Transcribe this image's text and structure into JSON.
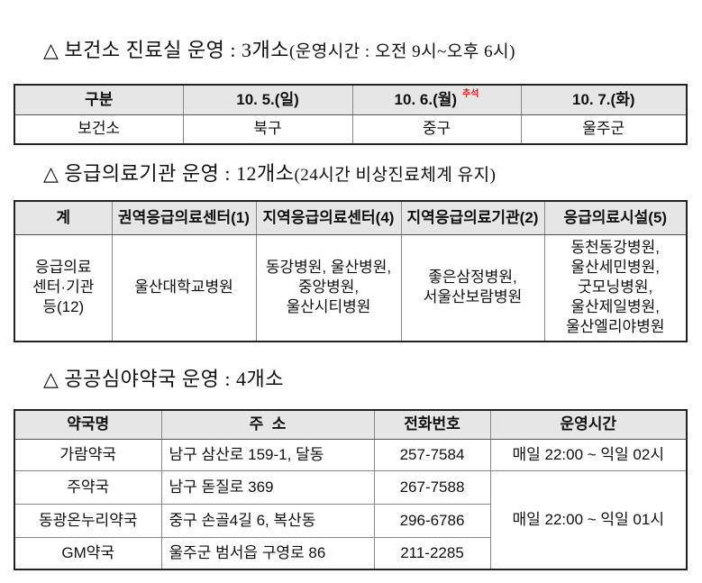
{
  "section1": {
    "heading": "△ 보건소 진료실 운영 : 3개소",
    "heading_sub": "(운영시간 : 오전 9시~오후 6시)",
    "headers": [
      "구분",
      "10. 5.(일)",
      "10. 6.(월)",
      "10. 7.(화)"
    ],
    "header_note": "추석",
    "row": [
      "보건소",
      "북구",
      "중구",
      "울주군"
    ]
  },
  "section2": {
    "heading": "△ 응급의료기관 운영 : 12개소",
    "heading_sub": "(24시간 비상진료체계 유지)",
    "headers": [
      "계",
      "권역응급의료센터(1)",
      "지역응급의료센터(4)",
      "지역응급의료기관(2)",
      "응급의료시설(5)"
    ],
    "row": [
      [
        "응급의료",
        "센터·기관",
        "등(12)"
      ],
      [
        "울산대학교병원"
      ],
      [
        "동강병원, 울산병원,",
        "중앙병원,",
        "울산시티병원"
      ],
      [
        "좋은삼정병원,",
        "서울산보람병원"
      ],
      [
        "동천동강병원,",
        "울산세민병원,",
        "굿모닝병원,",
        "울산제일병원,",
        "울산엘리야병원"
      ]
    ]
  },
  "section3": {
    "heading": "△ 공공심야약국 운영 : 4개소",
    "headers": [
      "약국명",
      "주  소",
      "전화번호",
      "운영시간"
    ],
    "rows": [
      {
        "name": "가람약국",
        "address": "남구 삼산로 159-1, 달동",
        "phone": "257-7584",
        "hours": "매일 22:00 ~ 익일 02시"
      },
      {
        "name": "주약국",
        "address": "남구 돋질로 369",
        "phone": "267-7588",
        "hours": "매일 22:00 ~ 익일 01시"
      },
      {
        "name": "동광온누리약국",
        "address": "중구 손골4길 6, 복산동",
        "phone": "296-6786"
      },
      {
        "name": "GM약국",
        "address": "울주군 범서읍 구영로 86",
        "phone": "211-2285"
      }
    ]
  },
  "colors": {
    "header_bg": "#e6e6e6",
    "note": "#e0201a"
  }
}
